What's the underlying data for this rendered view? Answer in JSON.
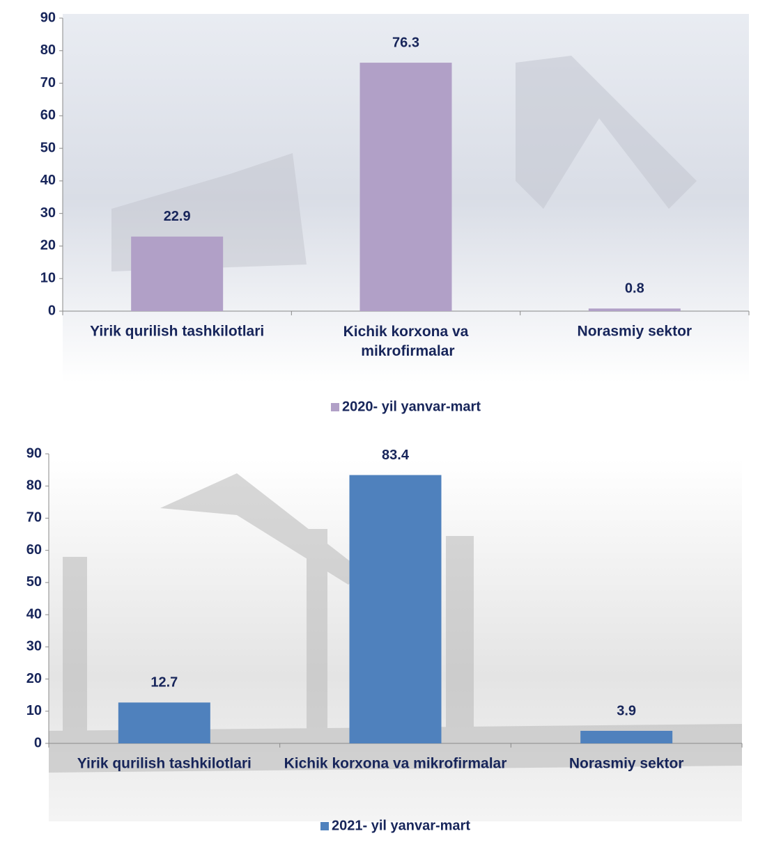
{
  "chart_data": [
    {
      "type": "bar",
      "categories": [
        "Yirik qurilish tashkilotlari",
        "Kichik korxona va mikrofirmalar",
        "Norasmiy sektor"
      ],
      "series": [
        {
          "name": "2020- yil yanvar-mart",
          "color": "#b1a0c7",
          "values": [
            22.9,
            76.3,
            0.8
          ]
        }
      ],
      "ylim": [
        0,
        90
      ],
      "yticks": [
        0,
        10,
        20,
        30,
        40,
        50,
        60,
        70,
        80,
        90
      ],
      "legend": "bottom"
    },
    {
      "type": "bar",
      "categories": [
        "Yirik qurilish tashkilotlari",
        "Kichik korxona va mikrofirmalar",
        "Norasmiy sektor"
      ],
      "series": [
        {
          "name": "2021- yil yanvar-mart",
          "color": "#4f81bd",
          "values": [
            12.7,
            83.4,
            3.9
          ]
        }
      ],
      "ylim": [
        0,
        90
      ],
      "yticks": [
        0,
        10,
        20,
        30,
        40,
        50,
        60,
        70,
        80,
        90
      ],
      "legend": "bottom"
    }
  ]
}
